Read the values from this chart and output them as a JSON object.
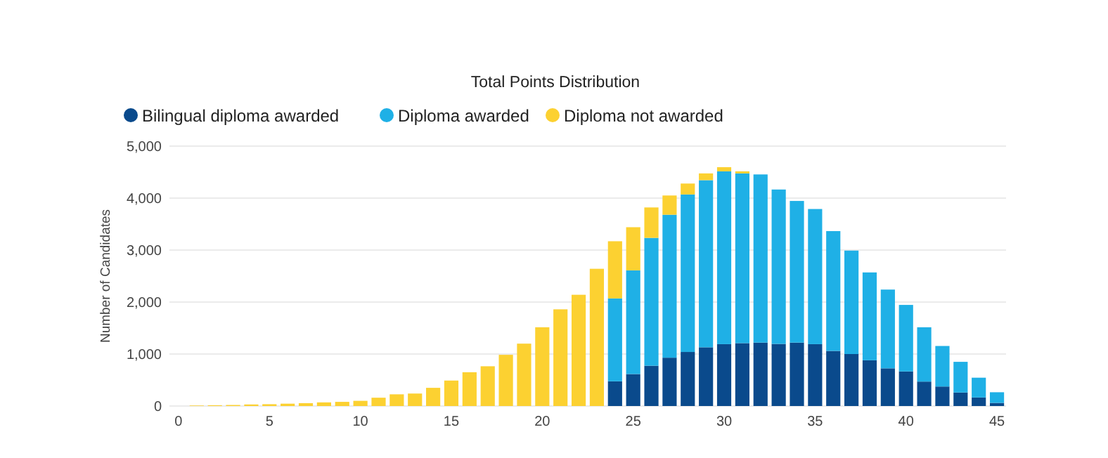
{
  "chart_data": {
    "type": "bar",
    "title": "Total Points Distribution",
    "ylabel": "Number of Candidates",
    "stacked": true,
    "categories": [
      "0",
      null,
      null,
      null,
      null,
      "5",
      null,
      null,
      null,
      null,
      "10",
      null,
      null,
      null,
      null,
      "15",
      null,
      null,
      null,
      null,
      "20",
      null,
      null,
      null,
      null,
      "25",
      null,
      null,
      null,
      null,
      "30",
      null,
      null,
      null,
      null,
      "35",
      null,
      null,
      null,
      null,
      "40",
      null,
      null,
      null,
      null,
      "45"
    ],
    "series": [
      {
        "name": "Bilingual diploma awarded",
        "color": "#0a4a8c",
        "values": [
          null,
          null,
          null,
          null,
          null,
          null,
          null,
          null,
          null,
          null,
          null,
          null,
          null,
          null,
          null,
          null,
          null,
          null,
          null,
          null,
          null,
          null,
          null,
          null,
          475,
          615,
          775,
          930,
          1040,
          1130,
          1190,
          1210,
          1220,
          1195,
          1220,
          1190,
          1060,
          1000,
          880,
          725,
          665,
          470,
          375,
          260,
          165,
          60
        ]
      },
      {
        "name": "Diploma awarded",
        "color": "#1fb0e6",
        "values": [
          null,
          null,
          null,
          null,
          null,
          null,
          null,
          null,
          null,
          null,
          null,
          null,
          null,
          null,
          null,
          null,
          null,
          null,
          null,
          null,
          null,
          null,
          null,
          null,
          1595,
          1995,
          2460,
          2750,
          3030,
          3215,
          3325,
          3265,
          3235,
          2970,
          2725,
          2600,
          2305,
          1990,
          1690,
          1515,
          1280,
          1045,
          780,
          590,
          380,
          205
        ]
      },
      {
        "name": "Diploma not awarded",
        "color": "#fcd131",
        "values": [
          null,
          10,
          15,
          20,
          30,
          35,
          45,
          55,
          70,
          80,
          100,
          160,
          225,
          240,
          350,
          490,
          650,
          765,
          985,
          1200,
          1515,
          1860,
          2140,
          2640,
          1100,
          830,
          585,
          370,
          210,
          130,
          80,
          40,
          null,
          null,
          null,
          null,
          null,
          null,
          null,
          null,
          null,
          null,
          null,
          null,
          null,
          null
        ]
      }
    ],
    "ylim": [
      0,
      5000
    ],
    "yticks": [
      0,
      {
        "value": 1000,
        "label": "1,000"
      },
      {
        "value": 2000,
        "label": "2,000"
      },
      {
        "value": 3000,
        "label": "3,000"
      },
      {
        "value": 4000,
        "label": "4,000"
      },
      {
        "value": 5000,
        "label": "5,000"
      }
    ],
    "grid": "y",
    "legend": "top left"
  }
}
